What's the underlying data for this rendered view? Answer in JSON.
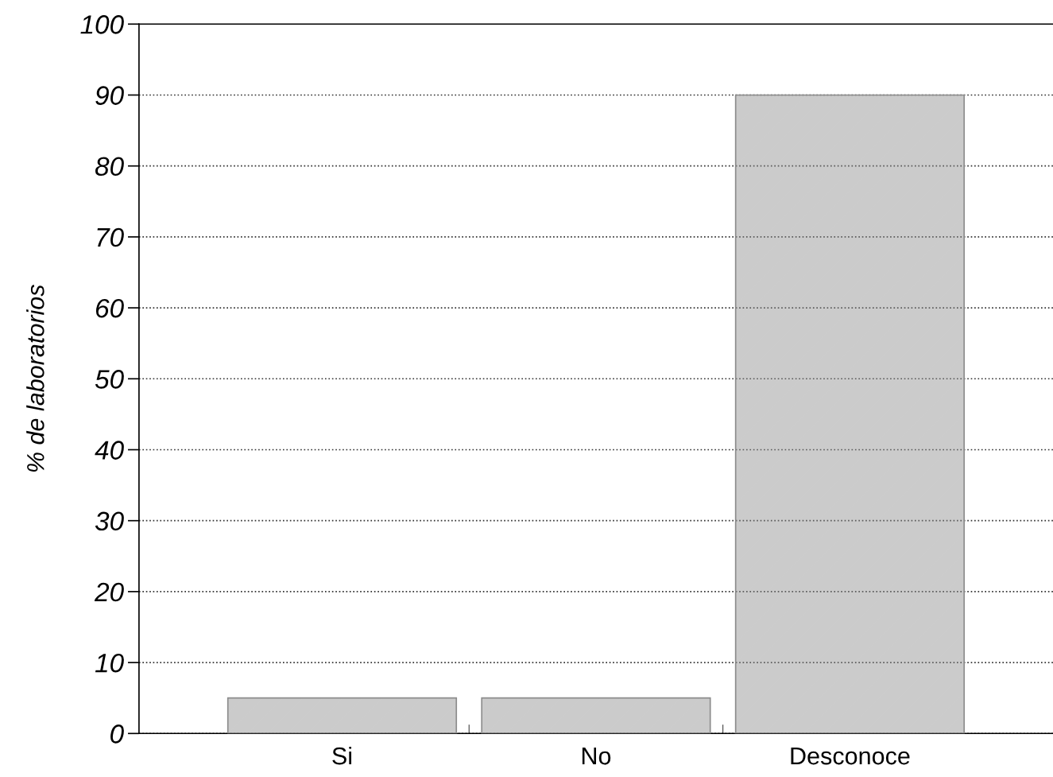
{
  "chart_data": {
    "type": "bar",
    "ylabel": "% de laboratorios",
    "categories": [
      "Si",
      "No",
      "Desconoce"
    ],
    "values": [
      5,
      5,
      90
    ],
    "color": "#8c8c8c",
    "ylim": [
      0,
      100
    ],
    "yticks": [
      0,
      10,
      20,
      30,
      40,
      50,
      60,
      70,
      80,
      90,
      100
    ],
    "grid": "y"
  }
}
